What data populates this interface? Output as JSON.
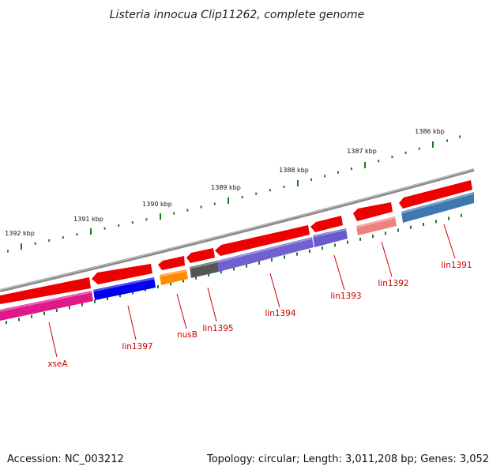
{
  "title": "Listeria innocua Clip11262, complete genome",
  "footer": {
    "accession": "Accession: NC_003212",
    "summary": "Topology: circular; Length: 3,011,208 bp; Genes: 3,052"
  },
  "colors": {
    "backbone": "#8a8a8a",
    "tick": "#1a7a1a",
    "label_line": "#cc0000",
    "label_text": "#cc0000"
  },
  "scale": {
    "ticks": [
      {
        "label": "1386 kbp"
      },
      {
        "label": "1387 kbp"
      },
      {
        "label": "1388 kbp"
      },
      {
        "label": "1389 kbp"
      },
      {
        "label": "1390 kbp"
      },
      {
        "label": "1391 kbp"
      },
      {
        "label": "1392 kbp"
      }
    ]
  },
  "genes": [
    {
      "name": "lin1391",
      "color": "#3d78b0"
    },
    {
      "name": "lin1392",
      "color": "#f08080"
    },
    {
      "name": "lin1393",
      "color": "#6a5acd"
    },
    {
      "name": "lin1394",
      "color": "#7060d0"
    },
    {
      "name": "lin1395",
      "color": "#555555"
    },
    {
      "name": "nusB",
      "color": "#ff8c00"
    },
    {
      "name": "lin1397",
      "color": "#0000ee"
    },
    {
      "name": "xseA",
      "color": "#e0188a"
    }
  ]
}
